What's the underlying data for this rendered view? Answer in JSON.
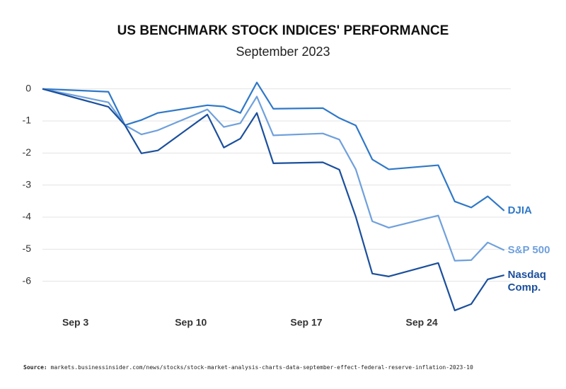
{
  "chart_data": {
    "type": "line",
    "title": "US BENCHMARK STOCK INDICES' PERFORMANCE",
    "subtitle": "September 2023",
    "x": [
      1,
      5,
      6,
      7,
      8,
      11,
      12,
      13,
      14,
      15,
      18,
      19,
      20,
      21,
      22,
      25,
      26,
      27,
      28,
      29
    ],
    "xlim": [
      1,
      29.4
    ],
    "xticks": [
      {
        "value": 3,
        "label": "Sep 3"
      },
      {
        "value": 10,
        "label": "Sep 10"
      },
      {
        "value": 17,
        "label": "Sep 17"
      },
      {
        "value": 24,
        "label": "Sep 24"
      }
    ],
    "ylim": [
      -7,
      0.5
    ],
    "yticks": [
      0,
      -1,
      -2,
      -3,
      -4,
      -5,
      -6
    ],
    "grid": true,
    "series": [
      {
        "name": "DJIA",
        "color": "#2f78c8",
        "values": [
          0,
          -0.09,
          -1.13,
          -0.97,
          -0.75,
          -0.51,
          -0.55,
          -0.75,
          0.2,
          -0.62,
          -0.6,
          -0.91,
          -1.14,
          -2.2,
          -2.51,
          -2.38,
          -3.51,
          -3.7,
          -3.35,
          -3.8
        ]
      },
      {
        "name": "S&P 500",
        "color": "#6fa0dc",
        "values": [
          0,
          -0.42,
          -1.13,
          -1.42,
          -1.29,
          -0.64,
          -1.19,
          -1.07,
          -0.24,
          -1.45,
          -1.39,
          -1.58,
          -2.51,
          -4.13,
          -4.33,
          -3.95,
          -5.36,
          -5.34,
          -4.79,
          -5.03
        ]
      },
      {
        "name": "Nasdaq Comp.",
        "color": "#1b4f9c",
        "values": [
          0,
          -0.56,
          -1.13,
          -2.01,
          -1.92,
          -0.8,
          -1.83,
          -1.55,
          -0.75,
          -2.32,
          -2.29,
          -2.52,
          -3.99,
          -5.76,
          -5.85,
          -5.43,
          -6.91,
          -6.71,
          -5.94,
          -5.81
        ]
      }
    ],
    "source": {
      "label": "Source:",
      "text": "markets.businessinsider.com/news/stocks/stock-market-analysis-charts-data-september-effect-federal-reserve-inflation-2023-10"
    }
  }
}
